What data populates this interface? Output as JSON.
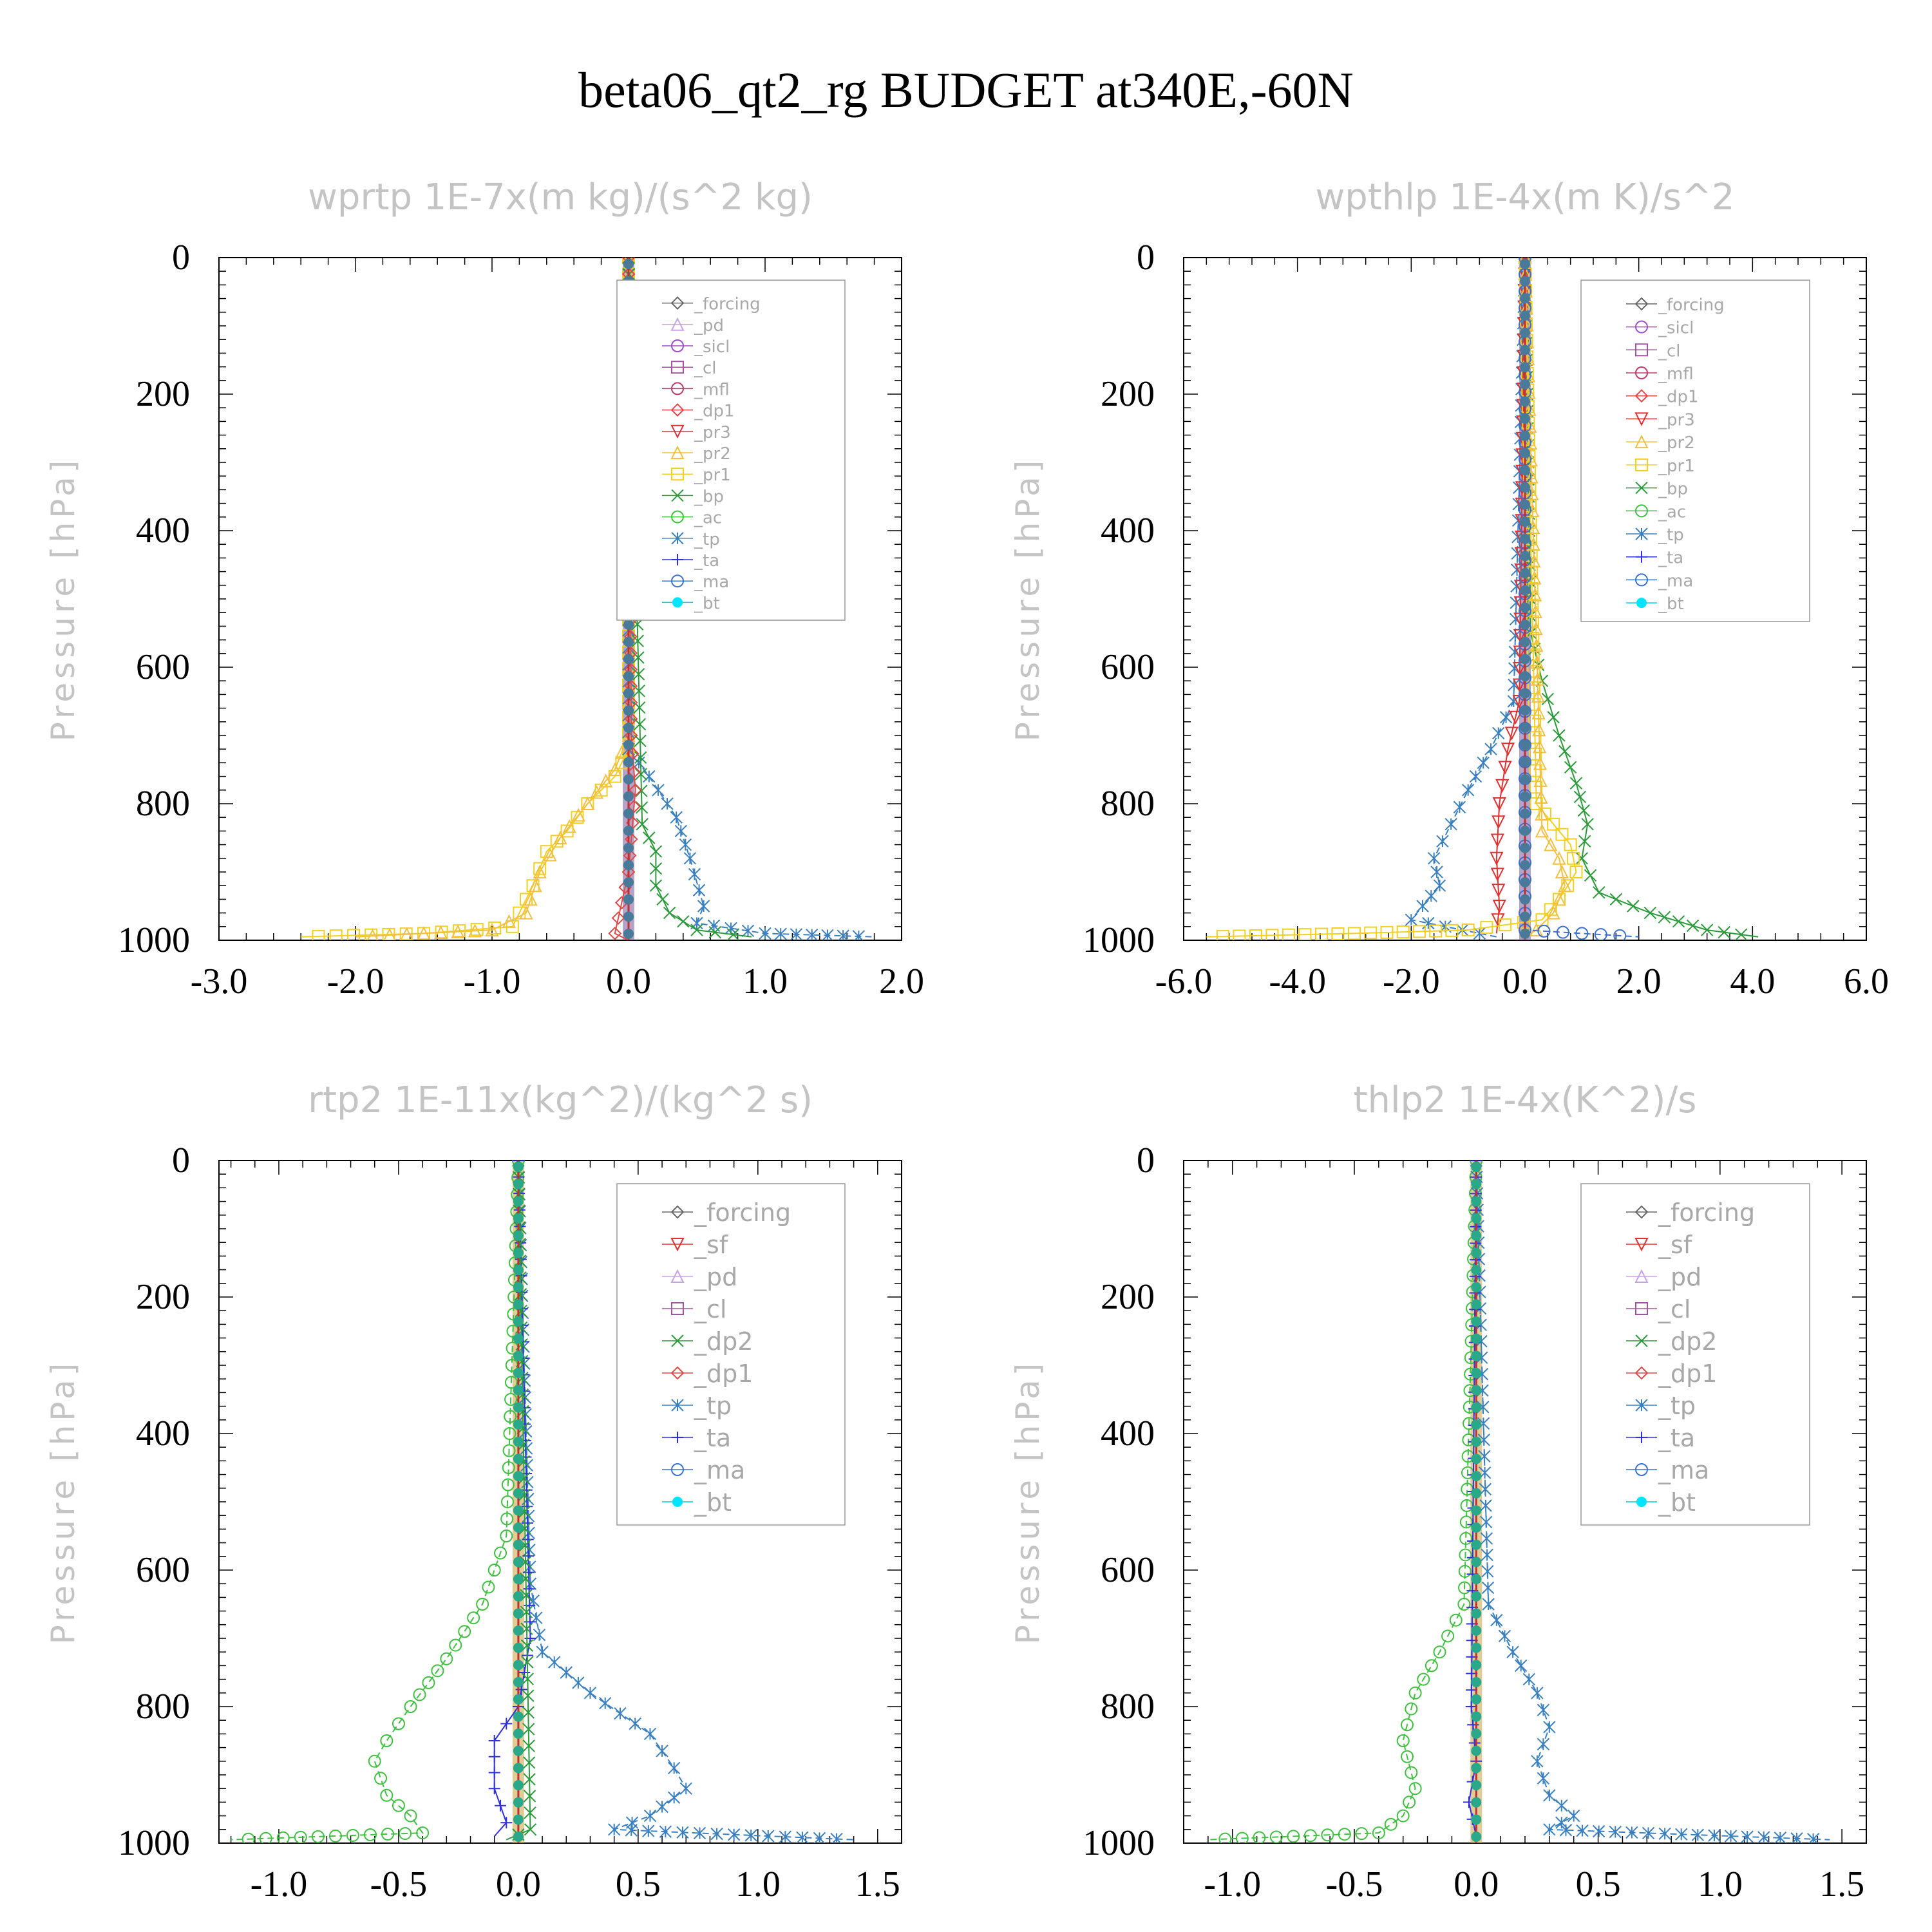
{
  "title": "beta06_qt2_rg  BUDGET at340E,-60N",
  "colors": {
    "forcing": "#666666",
    "pd": "#c9a3e8",
    "sicl": "#9a4fcf",
    "cl": "#a0569e",
    "mfl": "#c03a6a",
    "dp1": "#e04848",
    "pr3": "#e03030",
    "pr2": "#f2c040",
    "pr1": "#f2d020",
    "bp": "#2a9a3a",
    "ac": "#40c040",
    "tp": "#3a80c0",
    "ta": "#3030e0",
    "ma": "#3a70d0",
    "bt": "#00d0e0",
    "sf": "#e03030",
    "dp2": "#2a9a3a"
  },
  "chart_data": [
    {
      "type": "line",
      "title": "wprtp  1E-7x(m kg)/(s^2 kg)",
      "ylabel": "Pressure [hPa]",
      "xlim": [
        -3.0,
        2.0
      ],
      "ylim": [
        1000,
        0
      ],
      "xticks": [
        "-3.0",
        "-2.0",
        "-1.0",
        "0.0",
        "1.0",
        "2.0"
      ],
      "yticks": [
        "0",
        "200",
        "400",
        "600",
        "800",
        "1000"
      ],
      "legend_position": "top-right",
      "legend": [
        "_forcing",
        "_pd",
        "_sicl",
        "_cl",
        "_mfl",
        "_dp1",
        "_pr3",
        "_pr2",
        "_pr1",
        "_bp",
        "_ac",
        "_tp",
        "_ta",
        "_ma",
        "_bt"
      ],
      "series": [
        {
          "name": "_pr1",
          "key": "pr1",
          "x": [
            0,
            0,
            0,
            -0.1,
            -0.3,
            -0.45,
            -0.6,
            -0.7,
            -0.85,
            -1.5,
            -2.4
          ],
          "y": [
            0,
            650,
            720,
            760,
            800,
            840,
            870,
            920,
            980,
            990,
            995
          ]
        },
        {
          "name": "_pr2",
          "key": "pr2",
          "x": [
            0,
            0,
            -0.1,
            -0.3,
            -0.5,
            -0.65,
            -0.75,
            -1.0,
            -2.0
          ],
          "y": [
            0,
            700,
            750,
            800,
            850,
            900,
            960,
            985,
            995
          ]
        },
        {
          "name": "_tp",
          "key": "tp",
          "x": [
            0,
            0,
            0.15,
            0.35,
            0.45,
            0.55,
            0.5,
            1.0,
            1.8
          ],
          "y": [
            0,
            720,
            760,
            820,
            880,
            950,
            975,
            990,
            995
          ]
        },
        {
          "name": "_bp",
          "key": "bp",
          "x": [
            0,
            0.1,
            0.2,
            0.2,
            0.3,
            0.5,
            0.9
          ],
          "y": [
            0,
            830,
            870,
            920,
            960,
            985,
            995
          ]
        },
        {
          "name": "_dp1",
          "key": "dp1",
          "x": [
            0,
            0.02,
            0.05,
            0.0,
            -0.1,
            0
          ],
          "y": [
            0,
            700,
            780,
            900,
            990,
            1000
          ]
        },
        {
          "name": "_bt",
          "key": "bt",
          "x": [
            0,
            0
          ],
          "y": [
            0,
            1000
          ]
        }
      ]
    },
    {
      "type": "line",
      "title": "wpthlp  1E-4x(m K)/s^2",
      "ylabel": "Pressure [hPa]",
      "xlim": [
        -6.0,
        6.0
      ],
      "ylim": [
        1000,
        0
      ],
      "xticks": [
        "-6.0",
        "-4.0",
        "-2.0",
        "0.0",
        "2.0",
        "4.0",
        "6.0"
      ],
      "yticks": [
        "0",
        "200",
        "400",
        "600",
        "800",
        "1000"
      ],
      "legend_position": "top-right",
      "legend": [
        "_forcing",
        "_sicl",
        "_cl",
        "_mfl",
        "_dp1",
        "_pr3",
        "_pr2",
        "_pr1",
        "_bp",
        "_ac",
        "_tp",
        "_ta",
        "_ma",
        "_bt"
      ],
      "series": [
        {
          "name": "_bp",
          "key": "bp",
          "x": [
            0,
            0.1,
            0.3,
            0.6,
            0.9,
            1.1,
            1.0,
            1.3,
            2.2,
            3.2,
            4.1
          ],
          "y": [
            0,
            550,
            620,
            700,
            770,
            830,
            880,
            930,
            960,
            985,
            995
          ]
        },
        {
          "name": "_tp",
          "key": "tp",
          "x": [
            0,
            -0.2,
            -0.6,
            -1.0,
            -1.3,
            -1.6,
            -1.5,
            -1.8,
            -2.0,
            -0.5
          ],
          "y": [
            0,
            650,
            720,
            780,
            830,
            880,
            920,
            950,
            970,
            995
          ]
        },
        {
          "name": "_pr3",
          "key": "pr3",
          "x": [
            0,
            -0.1,
            -0.3,
            -0.45,
            -0.5,
            -0.45,
            -0.5
          ],
          "y": [
            0,
            650,
            720,
            800,
            880,
            950,
            990
          ]
        },
        {
          "name": "_pr1",
          "key": "pr1",
          "x": [
            0,
            0.2,
            0.5,
            0.8,
            0.9,
            0.6,
            0.3,
            -1.0,
            -3.0,
            -5.6
          ],
          "y": [
            0,
            800,
            830,
            860,
            900,
            940,
            970,
            985,
            990,
            995
          ]
        },
        {
          "name": "_pr2",
          "key": "pr2",
          "x": [
            0,
            0.3,
            0.6,
            0.7,
            0.5,
            0.2,
            0
          ],
          "y": [
            0,
            840,
            880,
            920,
            960,
            985,
            995
          ]
        },
        {
          "name": "_ma",
          "key": "ma",
          "x": [
            0,
            0,
            1.0,
            2.0
          ],
          "y": [
            0,
            985,
            990,
            995
          ]
        },
        {
          "name": "_bt",
          "key": "bt",
          "x": [
            0,
            0
          ],
          "y": [
            0,
            1000
          ]
        }
      ]
    },
    {
      "type": "line",
      "title": "rtp2  1E-11x(kg^2)/(kg^2 s)",
      "ylabel": "Pressure [hPa]",
      "xlim": [
        -1.25,
        1.6
      ],
      "ylim": [
        1000,
        0
      ],
      "xticks": [
        "-1.0",
        "-0.5",
        "0.0",
        "0.5",
        "1.0",
        "1.5"
      ],
      "yticks": [
        "0",
        "200",
        "400",
        "600",
        "800",
        "1000"
      ],
      "legend_position": "top-right",
      "legend": [
        "_forcing",
        "_sf",
        "_pd",
        "_cl",
        "_dp2",
        "_dp1",
        "_tp",
        "_ta",
        "_ma",
        "_bt"
      ],
      "series": [
        {
          "name": "_dp1",
          "key": "ac",
          "x": [
            0,
            -0.05,
            -0.15,
            -0.3,
            -0.45,
            -0.55,
            -0.6,
            -0.55,
            -0.45,
            -0.4,
            -1.2
          ],
          "y": [
            0,
            550,
            650,
            730,
            800,
            850,
            880,
            930,
            960,
            985,
            995
          ]
        },
        {
          "name": "_tp",
          "key": "tp",
          "x": [
            0,
            0.05,
            0.1,
            0.3,
            0.55,
            0.65,
            0.7,
            0.55,
            0.4,
            1.4
          ],
          "y": [
            0,
            620,
            720,
            780,
            840,
            890,
            920,
            960,
            980,
            995
          ]
        },
        {
          "name": "_ta",
          "key": "ta",
          "x": [
            0,
            0.05,
            0.0,
            -0.1,
            -0.1,
            -0.05,
            -0.1
          ],
          "y": [
            0,
            700,
            800,
            850,
            920,
            970,
            990
          ]
        },
        {
          "name": "_dp2",
          "key": "dp2",
          "x": [
            0,
            0.05,
            -0.05
          ],
          "y": [
            0,
            980,
            995
          ]
        },
        {
          "name": "_bt",
          "key": "bt",
          "x": [
            0,
            0
          ],
          "y": [
            0,
            1000
          ]
        }
      ]
    },
    {
      "type": "line",
      "title": "thlp2  1E-4x(K^2)/s",
      "ylabel": "Pressure [hPa]",
      "xlim": [
        -1.2,
        1.6
      ],
      "ylim": [
        1000,
        0
      ],
      "xticks": [
        "-1.0",
        "-0.5",
        "0.0",
        "0.5",
        "1.0",
        "1.5"
      ],
      "yticks": [
        "0",
        "200",
        "400",
        "600",
        "800",
        "1000"
      ],
      "legend_position": "top-right",
      "legend": [
        "_forcing",
        "_sf",
        "_pd",
        "_cl",
        "_dp2",
        "_dp1",
        "_tp",
        "_ta",
        "_ma",
        "_bt"
      ],
      "series": [
        {
          "name": "_dp1",
          "key": "ac",
          "x": [
            0,
            -0.05,
            -0.15,
            -0.25,
            -0.3,
            -0.25,
            -0.3,
            -0.4,
            -1.1
          ],
          "y": [
            0,
            650,
            720,
            780,
            850,
            920,
            960,
            985,
            995
          ]
        },
        {
          "name": "_tp",
          "key": "tp",
          "x": [
            0,
            0.05,
            0.15,
            0.25,
            0.3,
            0.25,
            0.3,
            0.4,
            0.3,
            1.45
          ],
          "y": [
            0,
            650,
            720,
            780,
            830,
            880,
            930,
            960,
            980,
            995
          ]
        },
        {
          "name": "_ta",
          "key": "ta",
          "x": [
            0,
            -0.02,
            0.0,
            -0.03,
            0.0
          ],
          "y": [
            0,
            800,
            880,
            940,
            990
          ]
        },
        {
          "name": "_bt",
          "key": "bt",
          "x": [
            0,
            0
          ],
          "y": [
            0,
            1000
          ]
        }
      ]
    }
  ]
}
